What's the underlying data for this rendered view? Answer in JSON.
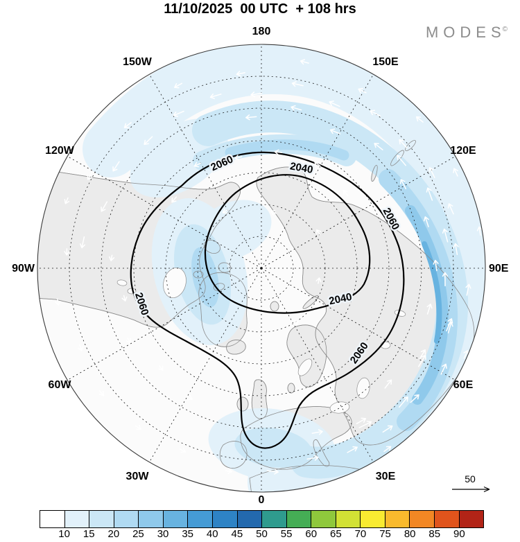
{
  "title": "11/10/2025  00 UTC  + 108 hrs",
  "logo": {
    "text": "MODES",
    "mark": "©"
  },
  "map": {
    "lon_labels": [
      "180",
      "150W",
      "150E",
      "120W",
      "120E",
      "90W",
      "90E",
      "60W",
      "60E",
      "30W",
      "30E",
      "0"
    ],
    "contour_labels": [
      "2060",
      "2040",
      "2060",
      "2040",
      "2060",
      "2060"
    ],
    "contour_levels": [
      "2040",
      "2060"
    ]
  },
  "scale": {
    "label": "50"
  },
  "colorbar": {
    "labels": [
      "10",
      "15",
      "20",
      "25",
      "30",
      "35",
      "40",
      "45",
      "50",
      "55",
      "60",
      "65",
      "70",
      "75",
      "80",
      "85",
      "90"
    ],
    "colors": [
      "#ffffff",
      "#e2f1fa",
      "#cbe7f6",
      "#b0daf2",
      "#8fc9eb",
      "#68b3e0",
      "#459bd5",
      "#2e83c5",
      "#2369ae",
      "#2f9b8e",
      "#45ad55",
      "#8fc83c",
      "#d2e135",
      "#f9eb31",
      "#f9ba2d",
      "#f28724",
      "#e0541c",
      "#b22417"
    ]
  }
}
